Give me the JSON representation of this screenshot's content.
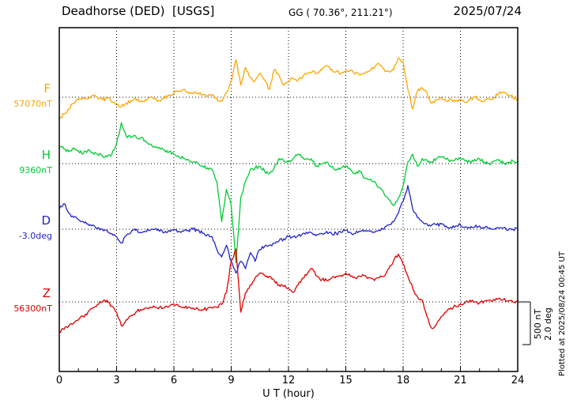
{
  "header": {
    "station": "Deadhorse (DED)  [USGS]",
    "gg": "GG ( 70.36°, 211.21°)",
    "date": "2025/07/24"
  },
  "axes": {
    "x_label": "U T (hour)",
    "x_min": 0,
    "x_max": 24,
    "x_ticks": [
      0,
      3,
      6,
      9,
      12,
      15,
      18,
      21,
      24
    ],
    "grid_hours": [
      3,
      6,
      9,
      12,
      15,
      18,
      21
    ]
  },
  "side": {
    "scale_nt_label": "500 nT",
    "scale_deg_label": "2.0 deg",
    "plotted_at": "Plotted at 2025/08/24 00:45 UT"
  },
  "chart_data": {
    "type": "line",
    "title": "Deadhorse (DED) [USGS] magnetogram 2025/07/24",
    "xlabel": "U T (hour)",
    "x_start": 0,
    "x_step": 0.25,
    "x_unit": "hour",
    "xlim": [
      0,
      24
    ],
    "grid": "dotted vertical every 3 hours, dotted horizontal at each trace baseline",
    "scale_bar": {
      "nT": 500,
      "deg": 2.0
    },
    "series": [
      {
        "name": "F",
        "baseline_label": "57070nT",
        "baseline_value": 57070,
        "units": "nT",
        "color": "#FFA500",
        "offsets": [
          -250,
          -200,
          -140,
          -70,
          -30,
          0,
          -20,
          20,
          0,
          -30,
          -10,
          -60,
          -90,
          -110,
          -70,
          -40,
          -20,
          -50,
          -30,
          0,
          -20,
          -40,
          -10,
          20,
          50,
          70,
          90,
          60,
          40,
          50,
          30,
          10,
          20,
          -20,
          -50,
          50,
          190,
          440,
          140,
          350,
          230,
          190,
          280,
          200,
          90,
          320,
          260,
          140,
          190,
          220,
          200,
          240,
          280,
          300,
          280,
          320,
          370,
          330,
          300,
          280,
          300,
          320,
          280,
          260,
          280,
          310,
          350,
          390,
          330,
          300,
          320,
          460,
          420,
          90,
          -140,
          70,
          110,
          50,
          -70,
          -30,
          0,
          -40,
          -20,
          -50,
          -30,
          -60,
          -20,
          0,
          -30,
          -50,
          -20,
          0,
          40,
          60,
          30,
          0,
          -20
        ]
      },
      {
        "name": "H",
        "baseline_label": "9360nT",
        "baseline_value": 9360,
        "units": "nT",
        "color": "#00CC33",
        "offsets": [
          200,
          170,
          140,
          185,
          150,
          120,
          160,
          130,
          110,
          90,
          80,
          110,
          230,
          480,
          320,
          305,
          320,
          300,
          270,
          230,
          200,
          190,
          160,
          140,
          110,
          90,
          60,
          50,
          20,
          0,
          -30,
          -50,
          -70,
          -210,
          -680,
          -300,
          -490,
          -1160,
          -400,
          -210,
          -70,
          -50,
          -30,
          -90,
          -120,
          -50,
          60,
          30,
          20,
          60,
          110,
          70,
          60,
          30,
          -30,
          0,
          20,
          -40,
          -70,
          -50,
          -30,
          -70,
          -120,
          -90,
          -170,
          -190,
          -210,
          -280,
          -350,
          -420,
          -490,
          -400,
          -260,
          20,
          110,
          -30,
          60,
          40,
          20,
          60,
          80,
          50,
          40,
          60,
          60,
          30,
          20,
          50,
          50,
          20,
          0,
          30,
          40,
          10,
          10,
          30,
          30
        ]
      },
      {
        "name": "D",
        "baseline_label": "-3.0deg",
        "baseline_value": -3.0,
        "units": "deg",
        "color": "#2222CC",
        "offsets": [
          0.95,
          1.2,
          0.75,
          0.55,
          0.45,
          0.35,
          0.25,
          0.2,
          0.05,
          0,
          -0.05,
          -0.2,
          -0.35,
          -0.65,
          -0.3,
          -0.15,
          -0.05,
          -0.15,
          -0.1,
          -0.05,
          0,
          -0.1,
          -0.15,
          -0.05,
          -0.05,
          -0.1,
          -0.1,
          -0.05,
          0,
          -0.05,
          -0.2,
          -0.25,
          -0.35,
          -0.95,
          -1.3,
          -0.75,
          -1.5,
          -2.05,
          -1.5,
          -1.85,
          -1.1,
          -1.5,
          -0.95,
          -0.8,
          -0.75,
          -0.65,
          -0.55,
          -0.45,
          -0.35,
          -0.35,
          -0.3,
          -0.2,
          -0.2,
          -0.2,
          -0.25,
          -0.2,
          -0.1,
          -0.2,
          -0.2,
          -0.15,
          -0.05,
          -0.15,
          -0.2,
          -0.1,
          -0.05,
          -0.1,
          -0.15,
          -0.05,
          0,
          0.2,
          0.35,
          0.75,
          1.3,
          2.05,
          0.95,
          0.55,
          0.35,
          0.25,
          0.2,
          0.2,
          0.25,
          0.15,
          0.1,
          0.15,
          0.2,
          0.1,
          0.05,
          0.1,
          0.15,
          0.05,
          0.05,
          0,
          0.05,
          0.05,
          -0.05,
          0,
          0.05
        ]
      },
      {
        "name": "Z",
        "baseline_label": "56300nT",
        "baseline_value": 56300,
        "units": "nT",
        "color": "#E00000",
        "offsets": [
          -350,
          -320,
          -280,
          -250,
          -210,
          -170,
          -120,
          -70,
          -30,
          0,
          20,
          -50,
          -120,
          -280,
          -210,
          -160,
          -120,
          -90,
          -70,
          -60,
          -60,
          -60,
          -70,
          -50,
          -30,
          -50,
          -60,
          -60,
          -70,
          -80,
          -90,
          -80,
          -70,
          -60,
          -30,
          110,
          480,
          620,
          -120,
          110,
          200,
          280,
          340,
          310,
          300,
          250,
          200,
          180,
          160,
          110,
          200,
          280,
          340,
          390,
          300,
          260,
          250,
          280,
          300,
          310,
          340,
          300,
          280,
          300,
          310,
          280,
          250,
          280,
          300,
          390,
          480,
          560,
          440,
          300,
          160,
          60,
          20,
          -170,
          -310,
          -260,
          -170,
          -120,
          -70,
          -50,
          -30,
          -10,
          20,
          0,
          -10,
          10,
          20,
          30,
          40,
          30,
          10,
          0,
          20
        ]
      }
    ]
  }
}
